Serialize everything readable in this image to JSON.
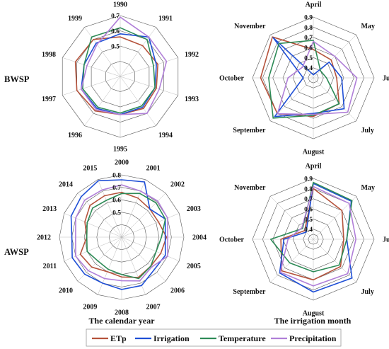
{
  "row_labels": {
    "top": "BWSP",
    "bottom": "AWSP"
  },
  "captions": {
    "bottom_left": "The calendar year",
    "bottom_right": "The irrigation month"
  },
  "legend": [
    {
      "name": "ETp",
      "color": "#b5533c"
    },
    {
      "name": "Irrigation",
      "color": "#1f4fd6"
    },
    {
      "name": "Temperature",
      "color": "#2e8b57"
    },
    {
      "name": "Precipitation",
      "color": "#b07fd8"
    }
  ],
  "chart_data": [
    {
      "type": "radar",
      "panel": "top-left",
      "categories": [
        "1990",
        "1991",
        "1992",
        "1993",
        "1994",
        "1995",
        "1996",
        "1997",
        "1998",
        "1999"
      ],
      "rlim": [
        0.3,
        0.7
      ],
      "tick_labels": [
        "0.5",
        "0.6",
        "0.7"
      ],
      "tick_values": [
        0.5,
        0.6,
        0.7
      ],
      "series": [
        {
          "name": "ETp",
          "color": "#b5533c",
          "values": [
            0.56,
            0.55,
            0.56,
            0.55,
            0.56,
            0.55,
            0.58,
            0.6,
            0.61,
            0.6
          ]
        },
        {
          "name": "Irrigation",
          "color": "#1f4fd6",
          "values": [
            0.58,
            0.62,
            0.55,
            0.54,
            0.55,
            0.55,
            0.56,
            0.57,
            0.55,
            0.57
          ]
        },
        {
          "name": "Temperature",
          "color": "#2e8b57",
          "values": [
            0.62,
            0.6,
            0.53,
            0.54,
            0.54,
            0.54,
            0.55,
            0.56,
            0.55,
            0.62
          ]
        },
        {
          "name": "Precipitation",
          "color": "#b07fd8",
          "values": [
            0.69,
            0.62,
            0.62,
            0.57,
            0.6,
            0.55,
            0.57,
            0.57,
            0.53,
            0.56
          ]
        }
      ]
    },
    {
      "type": "radar",
      "panel": "top-right",
      "categories": [
        "April",
        "May",
        "June",
        "July",
        "August",
        "September",
        "October",
        "November"
      ],
      "rlim": [
        0.3,
        0.9
      ],
      "tick_labels": [
        "0.4",
        "0.5",
        "0.6",
        "0.7",
        "0.8",
        "0.9"
      ],
      "tick_values": [
        0.4,
        0.5,
        0.6,
        0.7,
        0.8,
        0.9
      ],
      "series": [
        {
          "name": "ETp",
          "color": "#b5533c",
          "values": [
            0.58,
            0.55,
            0.53,
            0.66,
            0.68,
            0.8,
            0.82,
            0.87
          ]
        },
        {
          "name": "Irrigation",
          "color": "#1f4fd6",
          "values": [
            0.33,
            0.52,
            0.58,
            0.73,
            0.65,
            0.84,
            0.4,
            0.86
          ]
        },
        {
          "name": "Temperature",
          "color": "#2e8b57",
          "values": [
            0.67,
            0.4,
            0.43,
            0.66,
            0.67,
            0.86,
            0.74,
            0.78
          ]
        },
        {
          "name": "Precipitation",
          "color": "#b07fd8",
          "values": [
            0.66,
            0.6,
            0.73,
            0.78,
            0.66,
            0.8,
            0.55,
            0.45
          ]
        }
      ]
    },
    {
      "type": "radar",
      "panel": "bottom-left",
      "categories": [
        "2000",
        "2001",
        "2002",
        "2003",
        "2004",
        "2005",
        "2006",
        "2007",
        "2008",
        "2009",
        "2010",
        "2011",
        "2012",
        "2013",
        "2014",
        "2015"
      ],
      "rlim": [
        0.3,
        0.8
      ],
      "tick_labels": [
        "0.5",
        "0.6",
        "0.7",
        "0.8"
      ],
      "tick_values": [
        0.5,
        0.6,
        0.7,
        0.8
      ],
      "series": [
        {
          "name": "ETp",
          "color": "#b5533c",
          "values": [
            0.66,
            0.64,
            0.62,
            0.62,
            0.66,
            0.64,
            0.63,
            0.65,
            0.62,
            0.6,
            0.64,
            0.66,
            0.58,
            0.62,
            0.66,
            0.66
          ]
        },
        {
          "name": "Irrigation",
          "color": "#1f4fd6",
          "values": [
            0.76,
            0.78,
            0.62,
            0.68,
            0.65,
            0.68,
            0.67,
            0.72,
            0.72,
            0.7,
            0.72,
            0.73,
            0.7,
            0.74,
            0.76,
            0.79
          ]
        },
        {
          "name": "Temperature",
          "color": "#2e8b57",
          "values": [
            0.65,
            0.68,
            0.69,
            0.68,
            0.62,
            0.6,
            0.63,
            0.66,
            0.6,
            0.58,
            0.57,
            0.6,
            0.58,
            0.6,
            0.63,
            0.62
          ]
        },
        {
          "name": "Precipitation",
          "color": "#b07fd8",
          "values": [
            0.72,
            0.7,
            0.71,
            0.7,
            0.67,
            0.7,
            0.64,
            0.68,
            0.65,
            0.66,
            0.68,
            0.7,
            0.67,
            0.7,
            0.72,
            0.71
          ]
        }
      ]
    },
    {
      "type": "radar",
      "panel": "bottom-right",
      "categories": [
        "April",
        "May",
        "June",
        "July",
        "August",
        "September",
        "October",
        "November"
      ],
      "rlim": [
        0.3,
        0.9
      ],
      "tick_labels": [
        "0.4",
        "0.5",
        "0.6",
        "0.7",
        "0.8",
        "0.9"
      ],
      "tick_values": [
        0.4,
        0.5,
        0.6,
        0.7,
        0.8,
        0.9
      ],
      "series": [
        {
          "name": "ETp",
          "color": "#b5533c",
          "values": [
            0.8,
            0.7,
            0.6,
            0.68,
            0.7,
            0.74,
            0.62,
            0.42
          ]
        },
        {
          "name": "Irrigation",
          "color": "#1f4fd6",
          "values": [
            0.85,
            0.83,
            0.63,
            0.84,
            0.82,
            0.77,
            0.59,
            0.4
          ]
        },
        {
          "name": "Temperature",
          "color": "#2e8b57",
          "values": [
            0.86,
            0.84,
            0.63,
            0.66,
            0.62,
            0.63,
            0.72,
            0.45
          ]
        },
        {
          "name": "Precipitation",
          "color": "#b07fd8",
          "values": [
            0.82,
            0.8,
            0.72,
            0.78,
            0.76,
            0.76,
            0.55,
            0.46
          ]
        }
      ]
    }
  ]
}
